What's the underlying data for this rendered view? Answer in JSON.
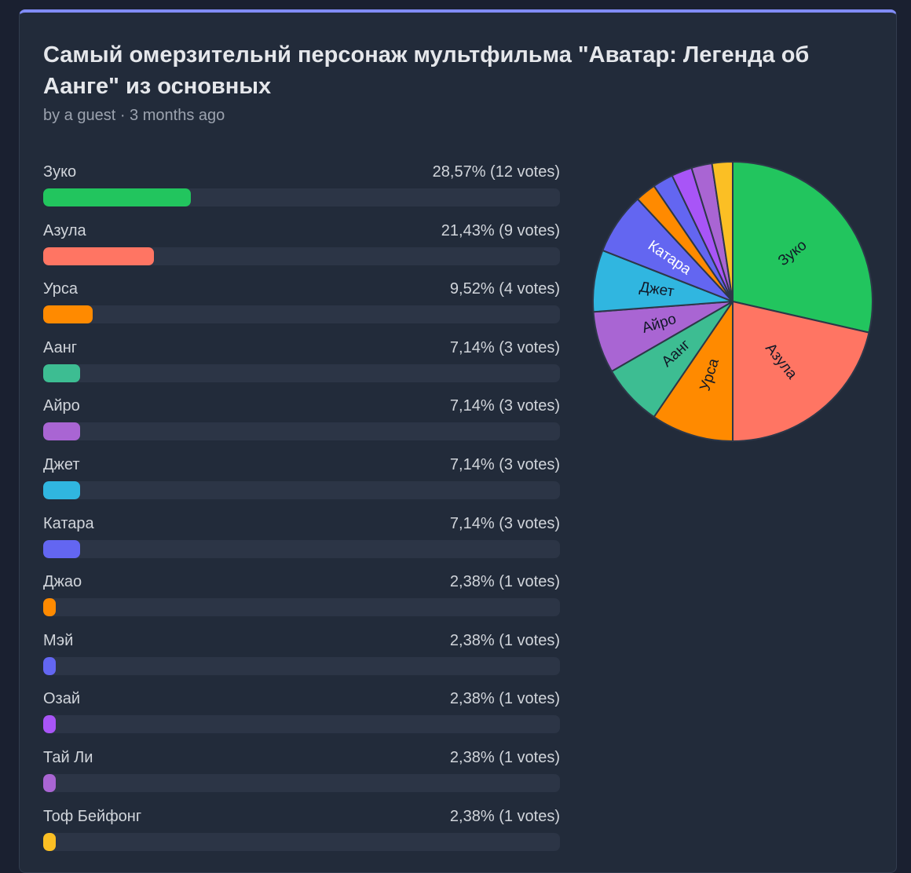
{
  "poll": {
    "title": "Самый омерзительнй персонаж мультфильма \"Аватар: Легенда об Аанге\" из основных",
    "meta": "by a guest · 3 months ago"
  },
  "options": [
    {
      "name": "Зуко",
      "stat": "28,57% (12 votes)",
      "votes": 12,
      "percent": 28.57,
      "color": "#22c55e",
      "pie_label": "Зуко"
    },
    {
      "name": "Азула",
      "stat": "21,43% (9 votes)",
      "votes": 9,
      "percent": 21.43,
      "color": "#ff7563",
      "pie_label": "Азула"
    },
    {
      "name": "Урса",
      "stat": "9,52% (4 votes)",
      "votes": 4,
      "percent": 9.52,
      "color": "#ff8a00",
      "pie_label": "Урса"
    },
    {
      "name": "Аанг",
      "stat": "7,14% (3 votes)",
      "votes": 3,
      "percent": 7.14,
      "color": "#3dbd92",
      "pie_label": "Аанг"
    },
    {
      "name": "Айро",
      "stat": "7,14% (3 votes)",
      "votes": 3,
      "percent": 7.14,
      "color": "#a965d3",
      "pie_label": "Айро"
    },
    {
      "name": "Джет",
      "stat": "7,14% (3 votes)",
      "votes": 3,
      "percent": 7.14,
      "color": "#30b6e0",
      "pie_label": "Джет"
    },
    {
      "name": "Катара",
      "stat": "7,14% (3 votes)",
      "votes": 3,
      "percent": 7.14,
      "color": "#6366f1",
      "pie_label": "Катара"
    },
    {
      "name": "Джао",
      "stat": "2,38% (1 votes)",
      "votes": 1,
      "percent": 2.38,
      "color": "#ff8a00",
      "pie_label": ""
    },
    {
      "name": "Мэй",
      "stat": "2,38% (1 votes)",
      "votes": 1,
      "percent": 2.38,
      "color": "#6366f1",
      "pie_label": ""
    },
    {
      "name": "Озай",
      "stat": "2,38% (1 votes)",
      "votes": 1,
      "percent": 2.38,
      "color": "#a855f7",
      "pie_label": ""
    },
    {
      "name": "Тай Ли",
      "stat": "2,38% (1 votes)",
      "votes": 1,
      "percent": 2.38,
      "color": "#a965d3",
      "pie_label": ""
    },
    {
      "name": "Тоф Бейфонг",
      "stat": "2,38% (1 votes)",
      "votes": 1,
      "percent": 2.38,
      "color": "#fbbf24",
      "pie_label": ""
    }
  ],
  "label_colors": {
    "dark": "#111827",
    "light": "#ffffff"
  }
}
